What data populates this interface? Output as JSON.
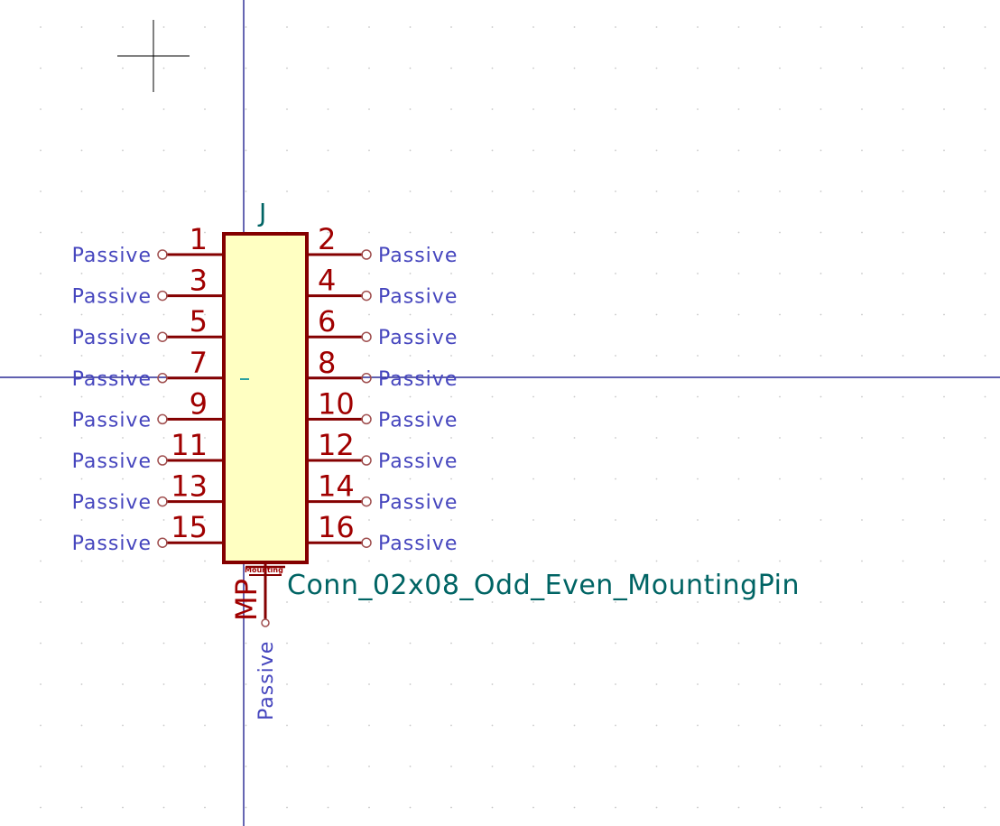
{
  "schematic": {
    "reference": "J",
    "value": "Conn_02x08_Odd_Even_MountingPin",
    "mounting_pin": {
      "name": "MP",
      "tiny_label": "Mounting",
      "type": "Passive"
    },
    "left_pins": [
      {
        "number": "1",
        "type": "Passive"
      },
      {
        "number": "3",
        "type": "Passive"
      },
      {
        "number": "5",
        "type": "Passive"
      },
      {
        "number": "7",
        "type": "Passive"
      },
      {
        "number": "9",
        "type": "Passive"
      },
      {
        "number": "11",
        "type": "Passive"
      },
      {
        "number": "13",
        "type": "Passive"
      },
      {
        "number": "15",
        "type": "Passive"
      }
    ],
    "right_pins": [
      {
        "number": "2",
        "type": "Passive"
      },
      {
        "number": "4",
        "type": "Passive"
      },
      {
        "number": "6",
        "type": "Passive"
      },
      {
        "number": "8",
        "type": "Passive"
      },
      {
        "number": "10",
        "type": "Passive"
      },
      {
        "number": "12",
        "type": "Passive"
      },
      {
        "number": "14",
        "type": "Passive"
      },
      {
        "number": "16",
        "type": "Passive"
      }
    ]
  },
  "colors": {
    "body_fill": "#ffffc2",
    "body_stroke": "#840000",
    "pin": "#840000",
    "pin_number": "#a00000",
    "pin_type": "#4646be",
    "field_text": "#006464",
    "axis": "#000080",
    "grid_dot": "#c8c8c8",
    "background": "#ffffff"
  }
}
